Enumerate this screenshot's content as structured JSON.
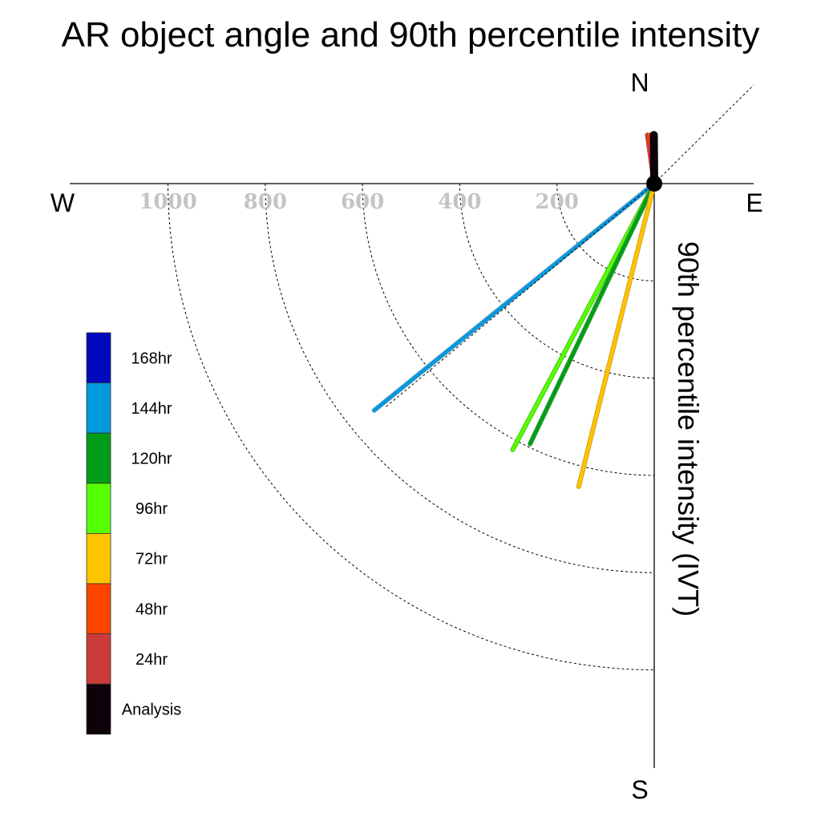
{
  "chart_data": {
    "type": "polar-vector",
    "title": "AR object angle and 90th percentile intensity",
    "ylabel": "90th percentile intensity (IVT)",
    "compass": {
      "north": "N",
      "south": "S",
      "west": "W",
      "east": "E"
    },
    "radial_ticks": [
      200,
      400,
      600,
      800,
      1000
    ],
    "rlim": [
      0,
      1000
    ],
    "grid": true,
    "legend_position": "left",
    "legend": [
      {
        "name": "168hr",
        "color": "#0008c0"
      },
      {
        "name": "144hr",
        "color": "#0099dd"
      },
      {
        "name": "120hr",
        "color": "#009e18"
      },
      {
        "name": "96hr",
        "color": "#55ff00"
      },
      {
        "name": "72hr",
        "color": "#ffc400"
      },
      {
        "name": "48hr",
        "color": "#ff4400"
      },
      {
        "name": "24hr",
        "color": "#cc3b3b"
      },
      {
        "name": "Analysis",
        "color": "#0d0209"
      }
    ],
    "series": [
      {
        "name": "144hr",
        "color": "#0099dd",
        "outline": "#6c9fc8",
        "angle_deg": 231,
        "intensity": 741,
        "width": 4
      },
      {
        "name": "96hr",
        "color": "#55ff00",
        "outline": "#4fc41c",
        "angle_deg": 208,
        "intensity": 620,
        "width": 4
      },
      {
        "name": "120hr",
        "color": "#009e18",
        "outline": "#3d9e3d",
        "angle_deg": 205.5,
        "intensity": 593,
        "width": 4
      },
      {
        "name": "72hr",
        "color": "#ffc400",
        "outline": "#d6a021",
        "angle_deg": 194,
        "intensity": 642,
        "width": 4
      },
      {
        "name": "24hr",
        "color": "#cc3b3b",
        "outline": "#cc3b3b",
        "angle_deg": 352,
        "intensity": 101,
        "width": 4
      },
      {
        "name": "48hr",
        "color": "#ff4400",
        "outline": "#ff4400",
        "angle_deg": 355,
        "intensity": 101,
        "width": 3
      },
      {
        "name": "Analysis",
        "color": "#0d0209",
        "outline": "#0d0209",
        "angle_deg": 359.5,
        "intensity": 100,
        "width": 8
      }
    ]
  }
}
